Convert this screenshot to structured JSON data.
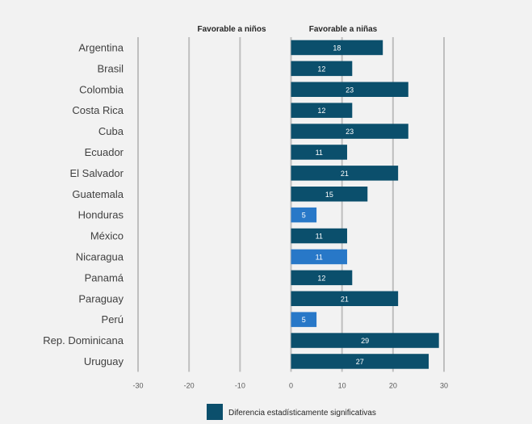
{
  "chart_data": {
    "type": "bar",
    "orientation": "horizontal",
    "headers": {
      "left": "Favorable a niños",
      "right": "Favorable a niñas"
    },
    "categories": [
      "Argentina",
      "Brasil",
      "Colombia",
      "Costa Rica",
      "Cuba",
      "Ecuador",
      "El Salvador",
      "Guatemala",
      "Honduras",
      "México",
      "Nicaragua",
      "Panamá",
      "Paraguay",
      "Perú",
      "Rep. Dominicana",
      "Uruguay"
    ],
    "values": [
      18,
      12,
      23,
      12,
      23,
      11,
      21,
      15,
      5,
      11,
      11,
      12,
      21,
      5,
      29,
      27
    ],
    "value_labels": [
      "18",
      "12",
      "23",
      "12",
      "23",
      "11",
      "21",
      "15",
      "5",
      "11",
      "11",
      "12",
      "21",
      "5",
      "29",
      "27"
    ],
    "significant": [
      true,
      true,
      true,
      true,
      true,
      true,
      true,
      true,
      false,
      true,
      false,
      true,
      true,
      false,
      true,
      true
    ],
    "xlim": [
      -30,
      30
    ],
    "xticks": [
      "-30",
      "-20",
      "-10",
      "0",
      "10",
      "20",
      "30"
    ],
    "grid": true,
    "legend": {
      "label": "Diferencia estadísticamente significativas",
      "placement": "bottom-center"
    },
    "colors": {
      "significant": "#0b4f6c",
      "not_significant": "#2878c8",
      "background": "#f2f2f2",
      "grid": "#bfbfbf"
    }
  }
}
